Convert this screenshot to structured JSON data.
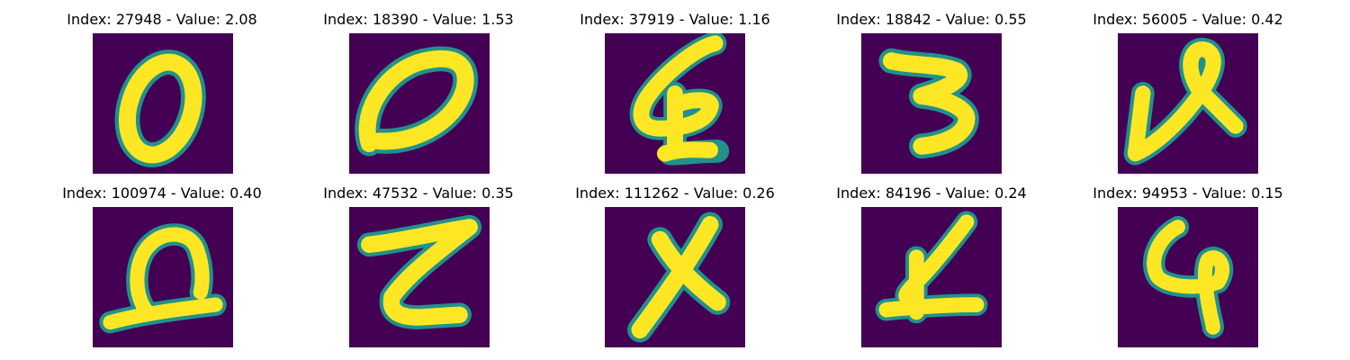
{
  "figure": {
    "colors": {
      "background": "#440154",
      "stroke_mid": "#21918c",
      "stroke_high": "#fde725"
    },
    "panels": [
      {
        "title": "Index: 27948 - Value: 2.08",
        "glyph": "0"
      },
      {
        "title": "Index: 18390 - Value: 1.53",
        "glyph": "0"
      },
      {
        "title": "Index: 37919 - Value: 1.16",
        "glyph": "4"
      },
      {
        "title": "Index: 18842 - Value: 0.55",
        "glyph": "3"
      },
      {
        "title": "Index: 56005 - Value: 0.42",
        "glyph": "ve"
      },
      {
        "title": "Index: 100974 - Value: 0.40",
        "glyph": "loop"
      },
      {
        "title": "Index: 47532 - Value: 0.35",
        "glyph": "Z"
      },
      {
        "title": "Index: 111262 - Value: 0.26",
        "glyph": "X"
      },
      {
        "title": "Index: 84196 - Value: 0.24",
        "glyph": "4"
      },
      {
        "title": "Index: 94953 - Value: 0.15",
        "glyph": "4"
      }
    ]
  }
}
